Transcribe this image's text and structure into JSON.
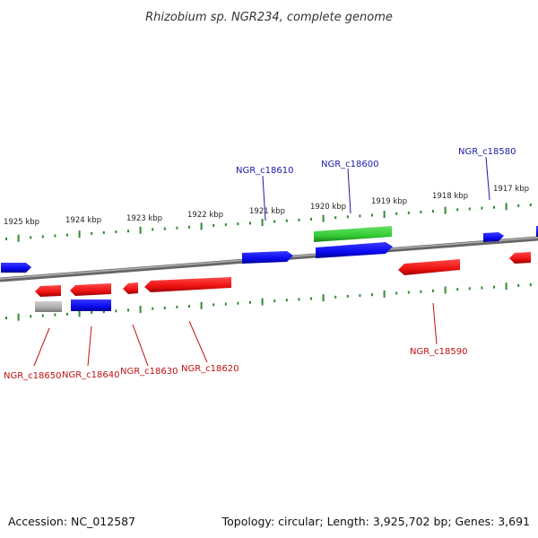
{
  "title": "Rhizobium sp. NGR234, complete genome",
  "footer": {
    "accession": "Accession: NC_012587",
    "topology": "Topology: circular; Length: 3,925,702 bp; Genes: 3,691"
  },
  "colors": {
    "forward_gene": "#0a0af0",
    "reverse_gene": "#ee1111",
    "highlight_gene": "#33cc33",
    "other_gene": "#aaaaaa",
    "tick": "#2e8b2e",
    "backbone": "#8c8c8c"
  },
  "kbp_labels": [
    "1925 kbp",
    "1924 kbp",
    "1923 kbp",
    "1922 kbp",
    "1921 kbp",
    "1920 kbp",
    "1919 kbp",
    "1918 kbp",
    "1917 kbp"
  ],
  "gene_labels": {
    "top": [
      "NGR_c18610",
      "NGR_c18600",
      "NGR_c18580"
    ],
    "bottom": [
      "NGR_c18650",
      "NGR_c18640",
      "NGR_c18630",
      "NGR_c18620",
      "NGR_c18590"
    ]
  }
}
